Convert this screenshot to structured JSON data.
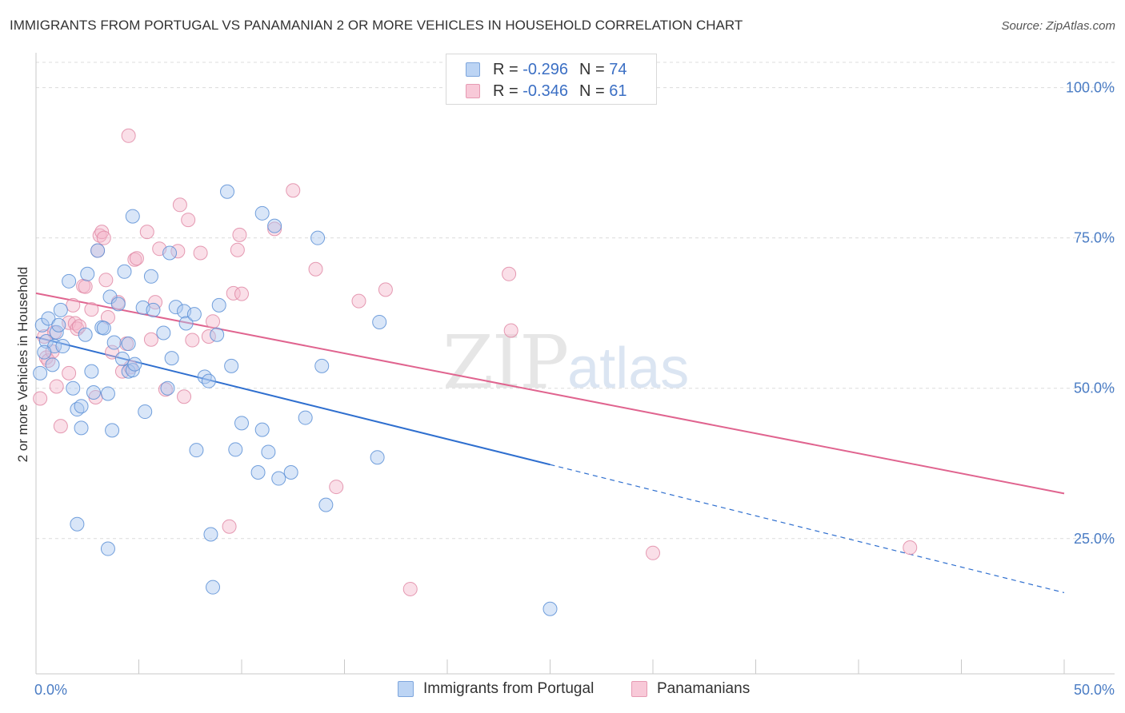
{
  "header": {
    "title": "IMMIGRANTS FROM PORTUGAL VS PANAMANIAN 2 OR MORE VEHICLES IN HOUSEHOLD CORRELATION CHART",
    "source": "Source: ZipAtlas.com"
  },
  "watermark": {
    "big": "ZIP",
    "small": "atlas"
  },
  "legend_top": {
    "rows": [
      {
        "r_label": "R =",
        "r_value": "-0.296",
        "n_label": "N =",
        "n_value": "74"
      },
      {
        "r_label": "R =",
        "r_value": "-0.346",
        "n_label": "N =",
        "n_value": "61"
      }
    ]
  },
  "legend_bottom": [
    {
      "label": "Immigrants from Portugal"
    },
    {
      "label": "Panamanians"
    }
  ],
  "colors": {
    "blue_fill": "#aac8f0",
    "blue_stroke": "#5a8fd6",
    "blue_line": "#2f6fcf",
    "pink_fill": "#f5b8cc",
    "pink_stroke": "#e08aa6",
    "pink_line": "#e0648f",
    "tick_text": "#4a7cc4",
    "grid": "#dcdcdc"
  },
  "chart_data": {
    "type": "scatter",
    "title": "IMMIGRANTS FROM PORTUGAL VS PANAMANIAN 2 OR MORE VEHICLES IN HOUSEHOLD CORRELATION CHART",
    "xlabel": "",
    "ylabel": "2 or more Vehicles in Household",
    "xlim": [
      0,
      50
    ],
    "ylim": [
      2.5,
      105
    ],
    "x_ticks": [
      "0.0%",
      "50.0%"
    ],
    "y_ticks": [
      {
        "value": 100,
        "label": "100.0%"
      },
      {
        "value": 75,
        "label": "75.0%"
      },
      {
        "value": 50,
        "label": "50.0%"
      },
      {
        "value": 25,
        "label": "25.0%"
      }
    ],
    "grid": "horizontal dashed",
    "series": [
      {
        "name": "Immigrants from Portugal",
        "color": "#5a8fd6",
        "r": -0.296,
        "n": 74,
        "trend": {
          "x0": 0,
          "y0": 58.5,
          "x1": 25,
          "y1": 37.3,
          "dashed_to_x": 50,
          "dashed_to_y": 16.0
        },
        "points": [
          [
            0.2,
            52.5
          ],
          [
            0.3,
            60.5
          ],
          [
            0.5,
            57.8
          ],
          [
            0.6,
            61.6
          ],
          [
            0.8,
            53.9
          ],
          [
            0.9,
            57.0
          ],
          [
            1.0,
            59.3
          ],
          [
            1.1,
            60.5
          ],
          [
            1.3,
            57.0
          ],
          [
            1.6,
            67.8
          ],
          [
            1.8,
            50.0
          ],
          [
            2.0,
            46.5
          ],
          [
            2.2,
            47.0
          ],
          [
            2.2,
            43.4
          ],
          [
            2.0,
            27.4
          ],
          [
            2.4,
            58.9
          ],
          [
            2.5,
            69.0
          ],
          [
            2.7,
            52.8
          ],
          [
            2.8,
            49.3
          ],
          [
            3.0,
            72.9
          ],
          [
            3.2,
            60.1
          ],
          [
            3.3,
            60.0
          ],
          [
            3.5,
            49.1
          ],
          [
            3.5,
            23.3
          ],
          [
            3.6,
            65.2
          ],
          [
            3.7,
            43.0
          ],
          [
            3.8,
            57.6
          ],
          [
            4.0,
            64.0
          ],
          [
            4.2,
            54.9
          ],
          [
            4.3,
            69.4
          ],
          [
            4.5,
            52.8
          ],
          [
            4.5,
            57.4
          ],
          [
            4.7,
            53.0
          ],
          [
            4.8,
            54.0
          ],
          [
            4.7,
            78.6
          ],
          [
            5.2,
            63.4
          ],
          [
            5.3,
            46.1
          ],
          [
            5.6,
            68.6
          ],
          [
            5.7,
            63.0
          ],
          [
            6.2,
            59.2
          ],
          [
            6.4,
            50.0
          ],
          [
            6.5,
            72.5
          ],
          [
            6.6,
            55.0
          ],
          [
            6.8,
            63.5
          ],
          [
            7.2,
            62.8
          ],
          [
            7.3,
            60.8
          ],
          [
            7.7,
            62.3
          ],
          [
            7.8,
            39.7
          ],
          [
            8.2,
            51.9
          ],
          [
            8.4,
            51.2
          ],
          [
            8.5,
            25.7
          ],
          [
            8.6,
            16.9
          ],
          [
            8.8,
            58.9
          ],
          [
            8.9,
            63.8
          ],
          [
            9.3,
            82.7
          ],
          [
            9.5,
            53.7
          ],
          [
            9.7,
            39.8
          ],
          [
            10.0,
            44.2
          ],
          [
            10.8,
            36.0
          ],
          [
            11.0,
            43.1
          ],
          [
            11.0,
            79.1
          ],
          [
            11.3,
            39.4
          ],
          [
            11.6,
            77.0
          ],
          [
            11.8,
            35.0
          ],
          [
            12.4,
            36.0
          ],
          [
            13.1,
            45.1
          ],
          [
            13.7,
            75.0
          ],
          [
            13.9,
            53.7
          ],
          [
            14.1,
            30.6
          ],
          [
            16.7,
            61.0
          ],
          [
            16.6,
            38.5
          ],
          [
            25.0,
            13.3
          ],
          [
            0.4,
            56.0
          ],
          [
            1.2,
            63.0
          ]
        ]
      },
      {
        "name": "Panamanians",
        "color": "#e08aa6",
        "r": -0.346,
        "n": 61,
        "trend": {
          "x0": 0,
          "y0": 65.8,
          "x1": 50,
          "y1": 32.5
        },
        "points": [
          [
            0.2,
            48.3
          ],
          [
            0.4,
            58.6
          ],
          [
            0.5,
            55.1
          ],
          [
            0.6,
            54.6
          ],
          [
            0.8,
            56.1
          ],
          [
            0.9,
            59.3
          ],
          [
            1.0,
            50.3
          ],
          [
            1.2,
            43.7
          ],
          [
            1.6,
            52.5
          ],
          [
            1.6,
            60.9
          ],
          [
            1.8,
            63.8
          ],
          [
            1.9,
            60.8
          ],
          [
            2.0,
            59.9
          ],
          [
            2.1,
            60.3
          ],
          [
            2.3,
            67.0
          ],
          [
            2.4,
            66.9
          ],
          [
            2.7,
            63.1
          ],
          [
            2.9,
            48.5
          ],
          [
            3.0,
            72.9
          ],
          [
            3.1,
            75.4
          ],
          [
            3.2,
            76.0
          ],
          [
            3.3,
            75.0
          ],
          [
            3.4,
            68.0
          ],
          [
            3.5,
            61.8
          ],
          [
            3.7,
            56.0
          ],
          [
            4.0,
            64.3
          ],
          [
            4.2,
            52.8
          ],
          [
            4.4,
            57.4
          ],
          [
            4.5,
            92.0
          ],
          [
            4.6,
            53.5
          ],
          [
            4.8,
            71.4
          ],
          [
            4.9,
            71.6
          ],
          [
            5.4,
            76.0
          ],
          [
            5.6,
            58.1
          ],
          [
            5.8,
            64.3
          ],
          [
            6.0,
            73.2
          ],
          [
            6.3,
            49.8
          ],
          [
            6.9,
            72.8
          ],
          [
            7.0,
            80.5
          ],
          [
            7.2,
            48.6
          ],
          [
            7.4,
            78.0
          ],
          [
            7.6,
            58.0
          ],
          [
            8.0,
            72.5
          ],
          [
            8.4,
            58.6
          ],
          [
            8.6,
            61.1
          ],
          [
            9.4,
            27.0
          ],
          [
            9.6,
            65.8
          ],
          [
            9.8,
            73.0
          ],
          [
            9.9,
            75.5
          ],
          [
            10.0,
            65.7
          ],
          [
            11.6,
            76.5
          ],
          [
            12.5,
            82.9
          ],
          [
            13.6,
            69.8
          ],
          [
            14.6,
            33.6
          ],
          [
            15.7,
            64.5
          ],
          [
            17.0,
            66.4
          ],
          [
            18.2,
            16.6
          ],
          [
            23.0,
            69.0
          ],
          [
            23.1,
            59.6
          ],
          [
            30.0,
            22.6
          ],
          [
            42.5,
            23.5
          ]
        ]
      }
    ]
  }
}
